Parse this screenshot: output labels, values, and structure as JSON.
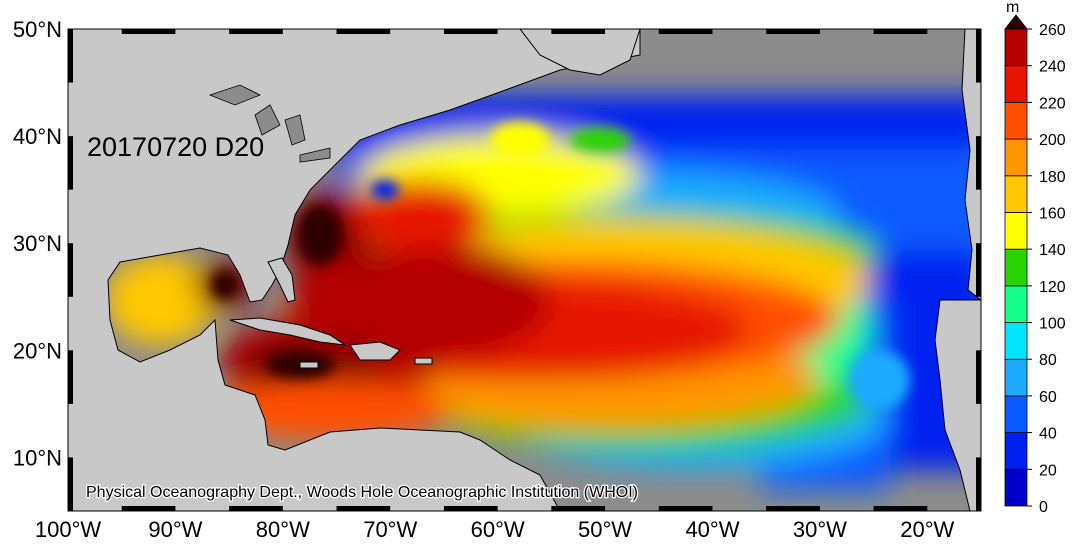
{
  "map": {
    "title": "20170720 D20",
    "credit": "Physical Oceanography Dept., Woods Hole Oceanographic Institution (WHOI)",
    "lon_labels": [
      "100°W",
      "90°W",
      "80°W",
      "70°W",
      "60°W",
      "50°W",
      "40°W",
      "30°W",
      "20°W"
    ],
    "lat_labels": [
      "50°N",
      "40°N",
      "30°N",
      "20°N",
      "10°N"
    ],
    "extent": {
      "lon_min": -100,
      "lon_max": -15,
      "lat_min": 5,
      "lat_max": 50
    },
    "land_color": "#c8c8c8",
    "ocean_missing_color": "#8c8c8c"
  },
  "colorbar": {
    "unit": "m",
    "ticks": [
      "0",
      "20",
      "40",
      "60",
      "80",
      "100",
      "120",
      "140",
      "160",
      "180",
      "200",
      "220",
      "240",
      "260"
    ],
    "colors": [
      "#0000c8",
      "#0020f0",
      "#0a5aff",
      "#1eaaff",
      "#00e6ff",
      "#14ff8c",
      "#2ad400",
      "#ffff00",
      "#ffc800",
      "#ff9600",
      "#ff5000",
      "#e61400",
      "#b40000",
      "#7a0000",
      "#2d0000"
    ]
  }
}
